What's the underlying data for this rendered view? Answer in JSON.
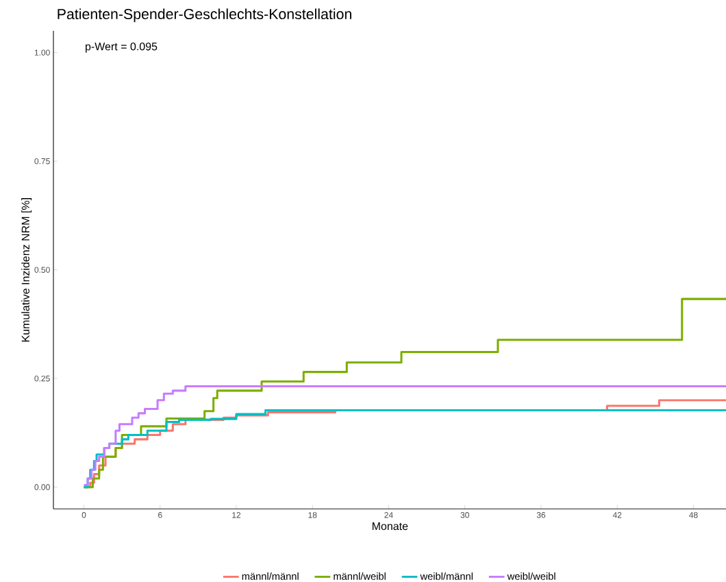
{
  "chart_data": {
    "type": "step",
    "title": "Patienten-Spender-Geschlechts-Konstellation",
    "xlabel": "Monate",
    "ylabel": "Kumulative Inzidenz NRM [%]",
    "annotations": [
      "p-Wert = 0.095"
    ],
    "xlim": [
      -2.4,
      50.6
    ],
    "ylim": [
      -0.05,
      1.05
    ],
    "xticks": [
      0,
      6,
      12,
      18,
      24,
      30,
      36,
      42,
      48
    ],
    "yticks": [
      {
        "value": 0,
        "label": "0.00"
      },
      {
        "value": 0.25,
        "label": "0.25"
      },
      {
        "value": 0.5,
        "label": "0.50"
      },
      {
        "value": 0.75,
        "label": "0.75"
      },
      {
        "value": 1,
        "label": "1.00"
      }
    ],
    "grid": false,
    "legend": "bottom",
    "marker": "none",
    "line_style": "solid",
    "series": [
      {
        "name": "männl/männl",
        "color": "#f8766d",
        "x": [
          0,
          0.5,
          0.8,
          1.2,
          1.7,
          2.5,
          3,
          4,
          5,
          6,
          7,
          8,
          11,
          12,
          14.5,
          19.8,
          41.2,
          45.3,
          50.6
        ],
        "values": [
          0,
          0.01,
          0.03,
          0.05,
          0.07,
          0.09,
          0.1,
          0.11,
          0.12,
          0.13,
          0.145,
          0.155,
          0.16,
          0.165,
          0.172,
          0.177,
          0.187,
          0.2,
          0.2
        ]
      },
      {
        "name": "männl/weibl",
        "color": "#7cae00",
        "x": [
          0,
          0.7,
          1.2,
          1.5,
          2.5,
          3,
          4.5,
          6.5,
          9.5,
          10.2,
          10.5,
          14,
          17.3,
          20.7,
          25,
          32.6,
          47.1,
          50.6
        ],
        "values": [
          0,
          0.02,
          0.04,
          0.07,
          0.09,
          0.12,
          0.14,
          0.158,
          0.175,
          0.205,
          0.222,
          0.243,
          0.265,
          0.287,
          0.311,
          0.339,
          0.433,
          0.433
        ]
      },
      {
        "name": "weibl/männl",
        "color": "#00bfc4",
        "x": [
          0,
          0.3,
          0.5,
          0.8,
          1,
          1.6,
          2,
          3,
          3.5,
          5,
          6.5,
          7.5,
          10,
          12,
          14.3,
          50.6
        ],
        "values": [
          0,
          0.02,
          0.04,
          0.06,
          0.075,
          0.09,
          0.1,
          0.11,
          0.12,
          0.13,
          0.15,
          0.155,
          0.157,
          0.168,
          0.177,
          0.177
        ]
      },
      {
        "name": "weibl/weibl",
        "color": "#c77cff",
        "x": [
          0,
          0.3,
          0.6,
          0.9,
          1.2,
          1.6,
          2,
          2.5,
          2.8,
          3.8,
          4.3,
          4.8,
          5.8,
          6.3,
          7,
          8,
          50.6
        ],
        "values": [
          0.005,
          0.02,
          0.04,
          0.06,
          0.07,
          0.09,
          0.1,
          0.13,
          0.145,
          0.16,
          0.17,
          0.18,
          0.2,
          0.215,
          0.222,
          0.232,
          0.232
        ]
      }
    ]
  }
}
